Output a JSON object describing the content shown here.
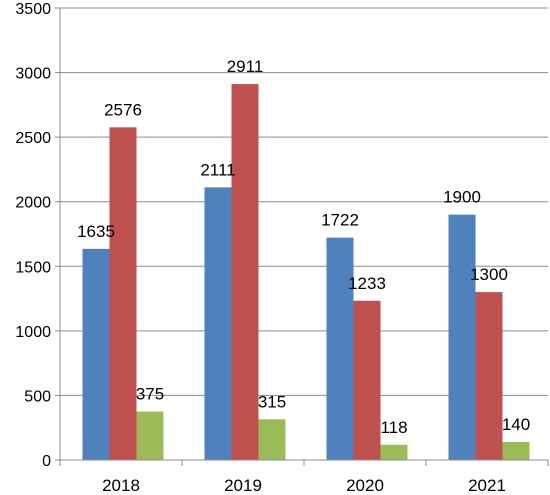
{
  "chart_data": {
    "type": "bar",
    "title": "",
    "xlabel": "",
    "ylabel": "",
    "categories": [
      "2018",
      "2019",
      "2020",
      "2021"
    ],
    "ylim": [
      0,
      3500
    ],
    "yticks": [
      0,
      500,
      1000,
      1500,
      2000,
      2500,
      3000,
      3500
    ],
    "grid": true,
    "legend": "none",
    "series": [
      {
        "values": [
          1635,
          2111,
          1722,
          1900
        ],
        "color": "#4f81bd"
      },
      {
        "values": [
          2576,
          2911,
          1233,
          1300
        ],
        "color": "#c0504d"
      },
      {
        "values": [
          375,
          315,
          118,
          140
        ],
        "color": "#9bbb59"
      }
    ]
  }
}
